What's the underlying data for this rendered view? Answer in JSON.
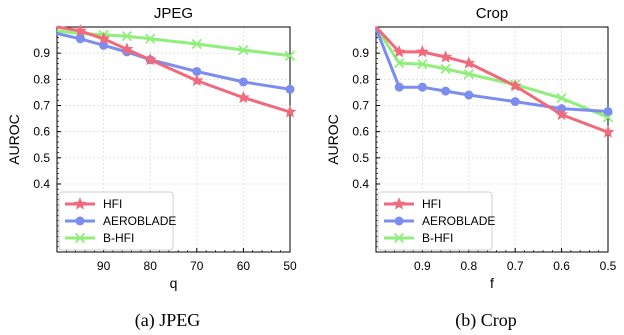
{
  "chart_data": [
    {
      "type": "line",
      "title": "JPEG",
      "xlabel": "q",
      "ylabel": "AUROC",
      "caption": "(a) JPEG",
      "x": [
        100,
        95,
        90,
        85,
        80,
        70,
        60,
        50
      ],
      "x_ticks": [
        "90",
        "80",
        "70",
        "60",
        "50"
      ],
      "x_tick_values": [
        90,
        80,
        70,
        60,
        50
      ],
      "xlim": [
        100,
        50
      ],
      "y_ticks": [
        "0.4",
        "0.5",
        "0.6",
        "0.7",
        "0.8",
        "0.9"
      ],
      "y_tick_values": [
        0.4,
        0.5,
        0.6,
        0.7,
        0.8,
        0.9
      ],
      "ylim": [
        0.14,
        1.0
      ],
      "grid": true,
      "legend_position": "lower-left",
      "series": [
        {
          "name": "HFI",
          "marker": "star",
          "color": "#f06a7c",
          "values": [
            1.0,
            0.985,
            0.955,
            0.915,
            0.875,
            0.795,
            0.73,
            0.675
          ]
        },
        {
          "name": "AEROBLADE",
          "marker": "circle",
          "color": "#7b8ef0",
          "values": [
            0.975,
            0.955,
            0.93,
            0.905,
            0.875,
            0.83,
            0.79,
            0.762
          ]
        },
        {
          "name": "B-HFI",
          "marker": "x",
          "color": "#8fef7a",
          "values": [
            0.985,
            0.975,
            0.97,
            0.965,
            0.955,
            0.935,
            0.912,
            0.89
          ]
        }
      ]
    },
    {
      "type": "line",
      "title": "Crop",
      "xlabel": "f",
      "ylabel": "AUROC",
      "caption": "(b) Crop",
      "x": [
        1.0,
        0.95,
        0.9,
        0.85,
        0.8,
        0.7,
        0.6,
        0.5
      ],
      "x_ticks": [
        "0.9",
        "0.8",
        "0.7",
        "0.6",
        "0.5"
      ],
      "x_tick_values": [
        0.9,
        0.8,
        0.7,
        0.6,
        0.5
      ],
      "xlim": [
        1.0,
        0.5
      ],
      "y_ticks": [
        "0.4",
        "0.5",
        "0.6",
        "0.7",
        "0.8",
        "0.9"
      ],
      "y_tick_values": [
        0.4,
        0.5,
        0.6,
        0.7,
        0.8,
        0.9
      ],
      "ylim": [
        0.14,
        1.0
      ],
      "grid": true,
      "legend_position": "lower-left",
      "series": [
        {
          "name": "HFI",
          "marker": "star",
          "color": "#f06a7c",
          "values": [
            1.0,
            0.905,
            0.905,
            0.885,
            0.862,
            0.775,
            0.665,
            0.598
          ]
        },
        {
          "name": "AEROBLADE",
          "marker": "circle",
          "color": "#7b8ef0",
          "values": [
            0.995,
            0.77,
            0.77,
            0.755,
            0.74,
            0.715,
            0.688,
            0.677
          ]
        },
        {
          "name": "B-HFI",
          "marker": "x",
          "color": "#8fef7a",
          "values": [
            1.0,
            0.862,
            0.858,
            0.84,
            0.82,
            0.78,
            0.728,
            0.655
          ]
        }
      ]
    }
  ]
}
